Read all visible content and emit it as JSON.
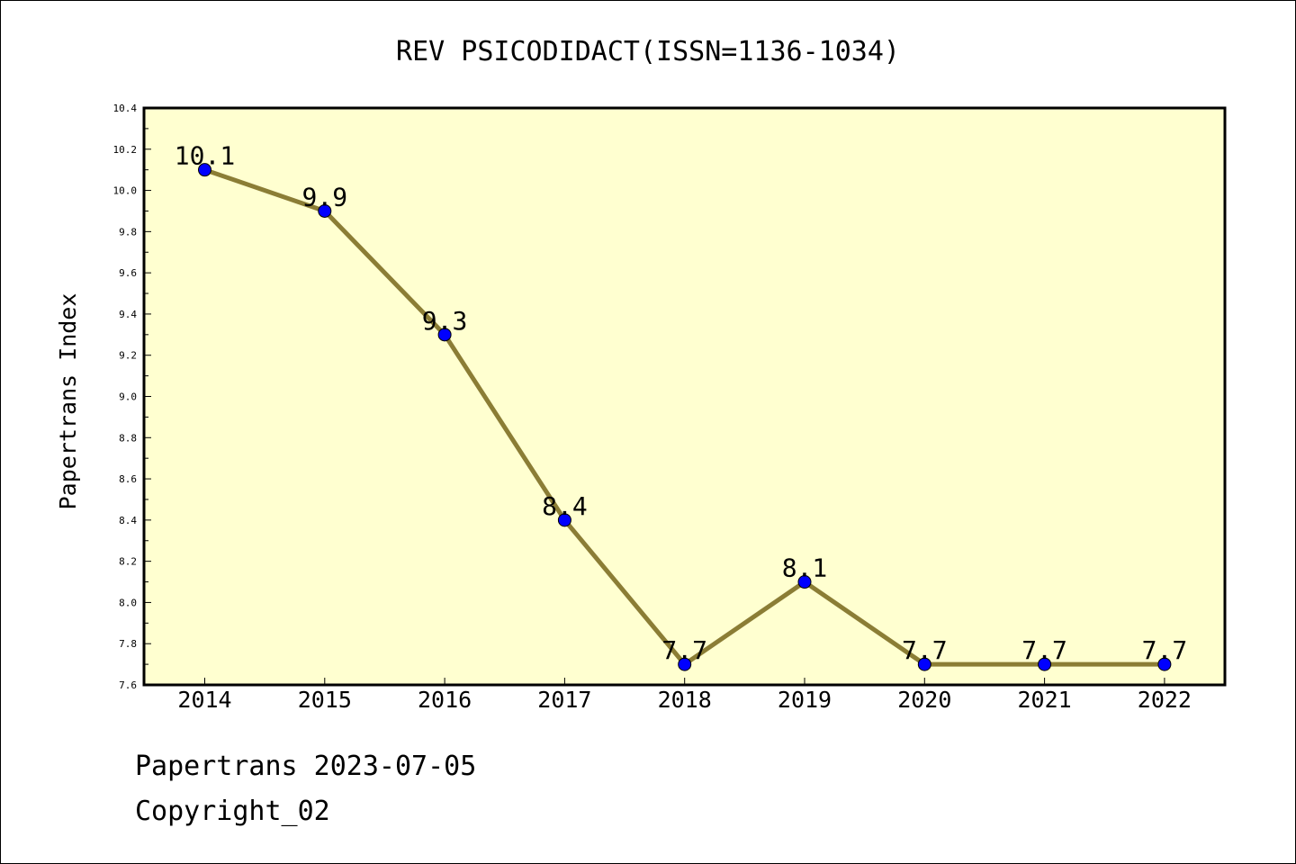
{
  "chart_data": {
    "type": "line",
    "title": "REV PSICODIDACT(ISSN=1136-1034)",
    "xlabel": "",
    "ylabel": "Papertrans Index",
    "categories": [
      "2014",
      "2015",
      "2016",
      "2017",
      "2018",
      "2019",
      "2020",
      "2021",
      "2022"
    ],
    "series": [
      {
        "values": [
          10.1,
          9.9,
          9.3,
          8.4,
          7.7,
          8.1,
          7.7,
          7.7,
          7.7
        ],
        "labels": [
          "10.1",
          "9.9",
          "9.3",
          "8.4",
          "7.7",
          "8.1",
          "7.7",
          "7.7",
          "7.7"
        ],
        "line_color": "#8b7d35",
        "marker_color": "#0000ff"
      }
    ],
    "ylim": [
      7.6,
      10.4
    ],
    "yticks": [
      "7.6",
      "7.8",
      "8.0",
      "8.2",
      "8.4",
      "8.6",
      "8.8",
      "9.0",
      "9.2",
      "9.4",
      "9.6",
      "9.8",
      "10.0",
      "10.2",
      "10.4"
    ],
    "plot_background": "#ffffd0",
    "grid": false,
    "legend": "none"
  },
  "footer": {
    "date_line": "Papertrans 2023-07-05",
    "copyright_line": "Copyright_02"
  }
}
